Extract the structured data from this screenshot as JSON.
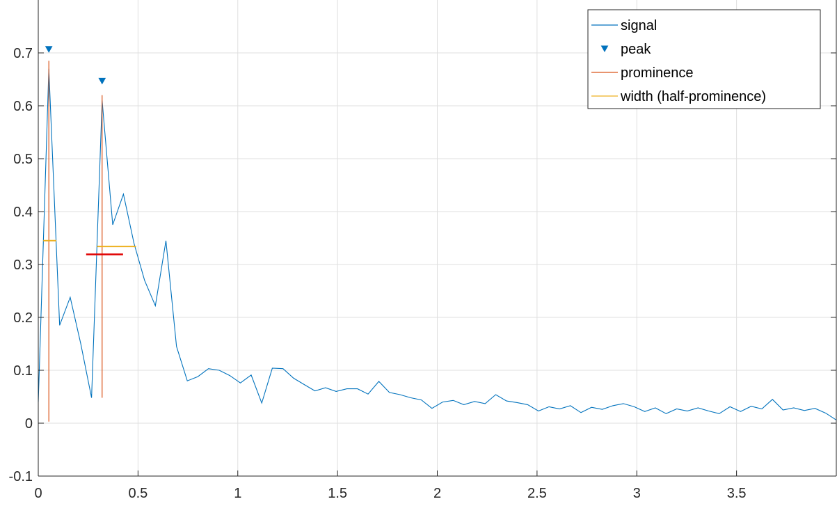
{
  "chart_data": {
    "type": "line",
    "title": "",
    "xlabel": "",
    "ylabel": "",
    "xlim": [
      0,
      4.0
    ],
    "ylim": [
      -0.1,
      0.8
    ],
    "grid": true,
    "legend_location": "top-right",
    "x_ticks": [
      0,
      0.5,
      1,
      1.5,
      2,
      2.5,
      3,
      3.5
    ],
    "x_tick_labels": [
      "0",
      "0.5",
      "1",
      "1.5",
      "2",
      "2.5",
      "3",
      "3.5"
    ],
    "y_ticks": [
      -0.1,
      0,
      0.1,
      0.2,
      0.3,
      0.4,
      0.5,
      0.6,
      0.7
    ],
    "y_tick_labels": [
      "-0.1",
      "0",
      "0.1",
      "0.2",
      "0.3",
      "0.4",
      "0.5",
      "0.6",
      "0.7"
    ],
    "legend": [
      {
        "label": "signal",
        "color": "#0072BD",
        "marker": "line"
      },
      {
        "label": "peak",
        "color": "#0072BD",
        "marker": "triangle-down"
      },
      {
        "label": "prominence",
        "color": "#D95319",
        "marker": "line"
      },
      {
        "label": "width (half-prominence)",
        "color": "#EDB120",
        "marker": "line"
      }
    ],
    "series": [
      {
        "name": "signal",
        "color": "#0072BD",
        "x": [
          0,
          0.053,
          0.107,
          0.16,
          0.213,
          0.267,
          0.32,
          0.373,
          0.427,
          0.48,
          0.533,
          0.587,
          0.64,
          0.693,
          0.747,
          0.8,
          0.853,
          0.907,
          0.96,
          1.013,
          1.067,
          1.12,
          1.173,
          1.227,
          1.28,
          1.333,
          1.387,
          1.44,
          1.493,
          1.547,
          1.6,
          1.653,
          1.707,
          1.76,
          1.813,
          1.867,
          1.92,
          1.973,
          2.027,
          2.08,
          2.133,
          2.187,
          2.24,
          2.293,
          2.347,
          2.4,
          2.453,
          2.507,
          2.56,
          2.613,
          2.667,
          2.72,
          2.773,
          2.827,
          2.88,
          2.933,
          2.987,
          3.04,
          3.093,
          3.147,
          3.2,
          3.253,
          3.307,
          3.36,
          3.413,
          3.467,
          3.52,
          3.573,
          3.627,
          3.68,
          3.733,
          3.787,
          3.84,
          3.893,
          3.947,
          4.0
        ],
        "y": [
          0.04,
          0.67,
          0.185,
          0.238,
          0.15,
          0.048,
          0.61,
          0.375,
          0.433,
          0.34,
          0.27,
          0.222,
          0.345,
          0.145,
          0.08,
          0.088,
          0.103,
          0.1,
          0.09,
          0.076,
          0.091,
          0.038,
          0.104,
          0.103,
          0.085,
          0.073,
          0.061,
          0.067,
          0.06,
          0.065,
          0.065,
          0.055,
          0.079,
          0.058,
          0.054,
          0.048,
          0.044,
          0.028,
          0.04,
          0.043,
          0.035,
          0.041,
          0.037,
          0.054,
          0.042,
          0.039,
          0.035,
          0.023,
          0.031,
          0.027,
          0.033,
          0.02,
          0.03,
          0.026,
          0.033,
          0.037,
          0.031,
          0.022,
          0.029,
          0.018,
          0.027,
          0.023,
          0.029,
          0.023,
          0.018,
          0.031,
          0.022,
          0.032,
          0.027,
          0.045,
          0.025,
          0.029,
          0.024,
          0.028,
          0.019,
          0.006
        ]
      }
    ],
    "peaks": {
      "name": "peak",
      "color": "#0072BD",
      "x": [
        0.053,
        0.32
      ],
      "y": [
        0.67,
        0.61
      ]
    },
    "prominence_lines": {
      "name": "prominence",
      "color": "#D95319",
      "segments": [
        {
          "x": 0.053,
          "y_low": 0.003,
          "y_high": 0.685
        },
        {
          "x": 0.32,
          "y_low": 0.048,
          "y_high": 0.62
        }
      ]
    },
    "width_lines": {
      "name": "width (half-prominence)",
      "color": "#EDB120",
      "segments": [
        {
          "y": 0.345,
          "x_start": 0.025,
          "x_end": 0.09
        },
        {
          "y": 0.334,
          "x_start": 0.295,
          "x_end": 0.49
        }
      ]
    },
    "extra_line": {
      "color": "#E00000",
      "y": 0.319,
      "x_start": 0.24,
      "x_end": 0.425
    }
  }
}
